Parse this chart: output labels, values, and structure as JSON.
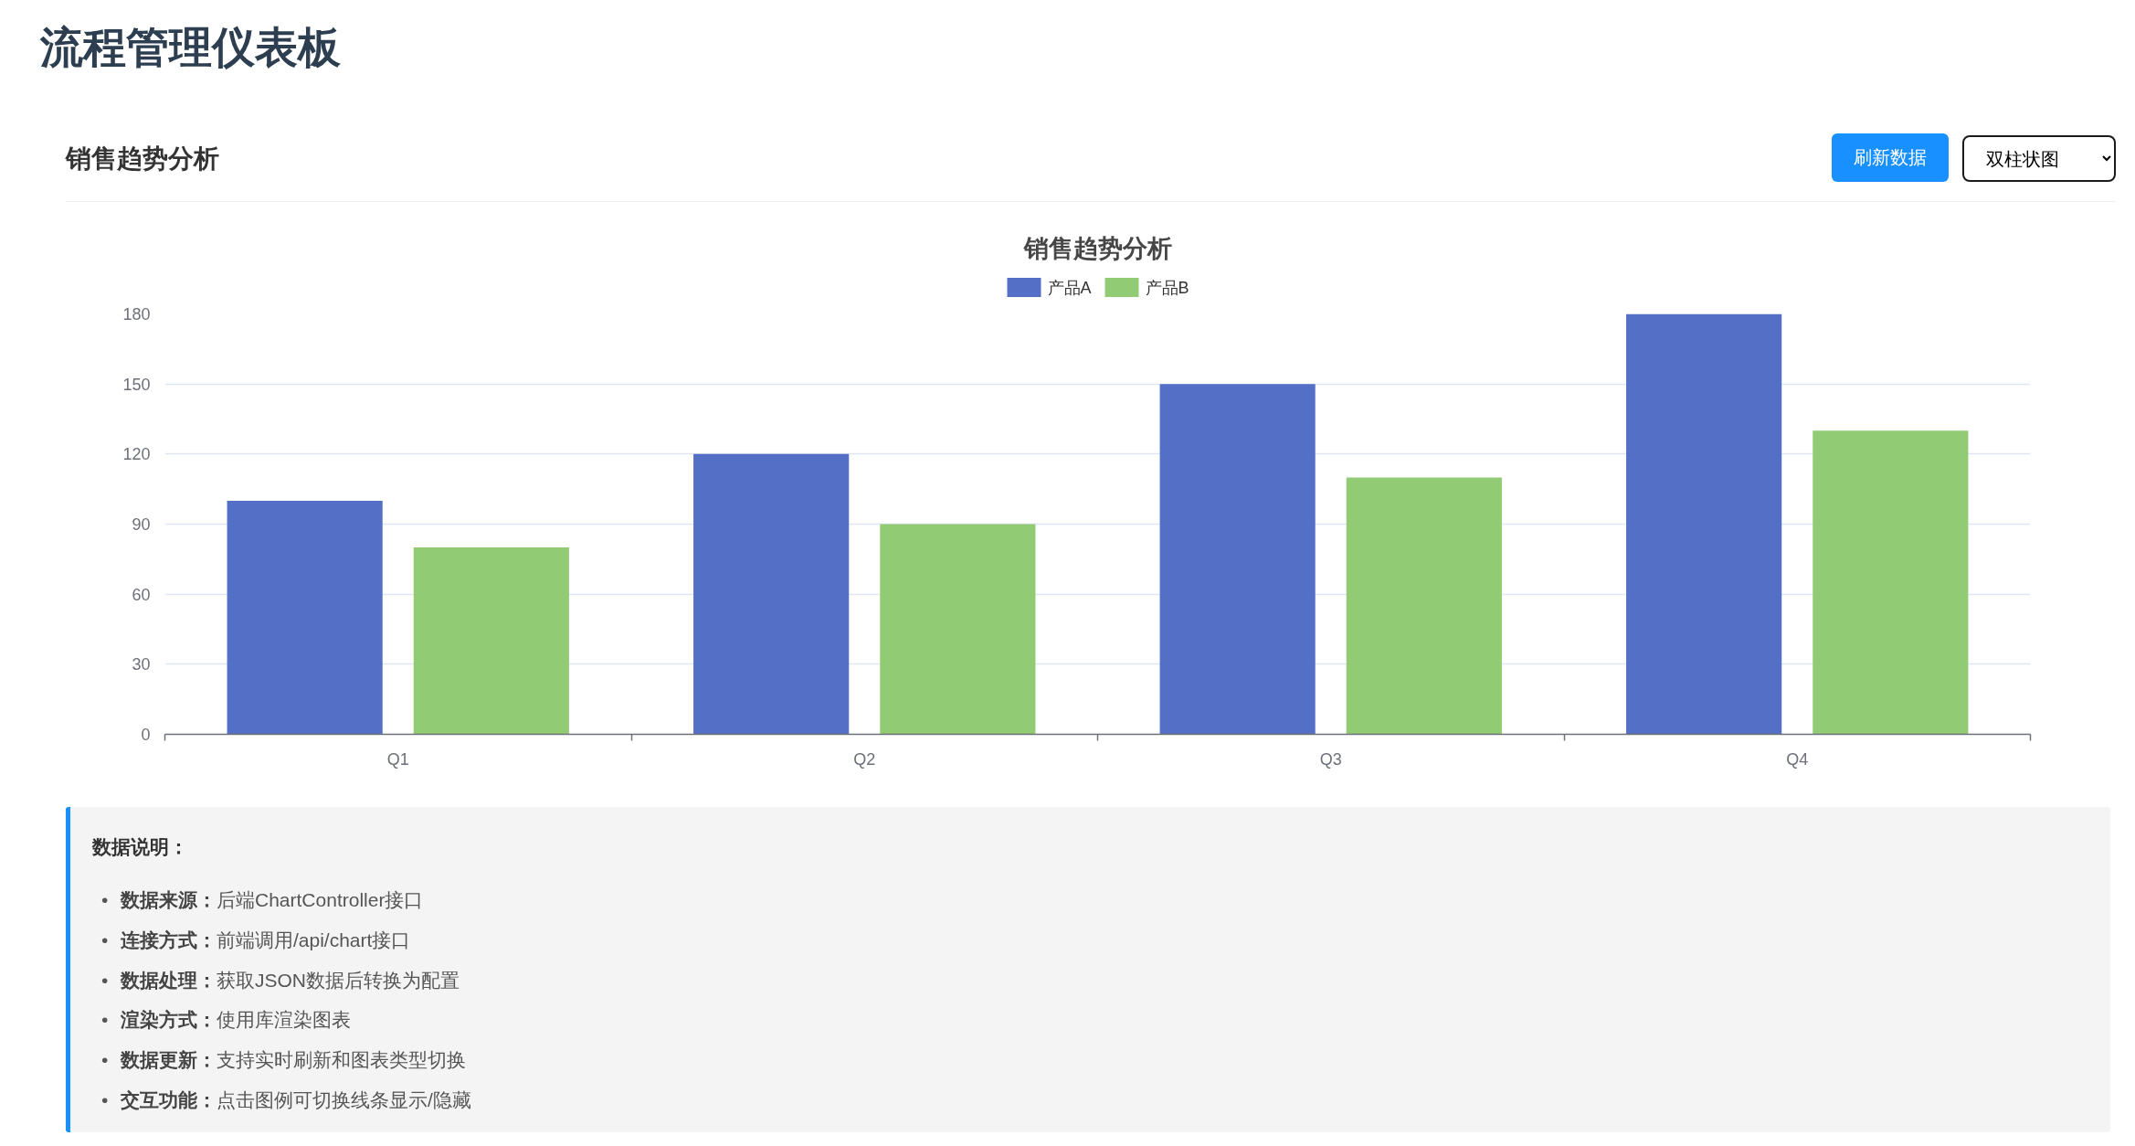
{
  "chart_data": {
    "type": "bar",
    "title": "销售趋势分析",
    "categories": [
      "Q1",
      "Q2",
      "Q3",
      "Q4"
    ],
    "series": [
      {
        "name": "产品A",
        "color": "#5470c6",
        "values": [
          100,
          120,
          150,
          180
        ]
      },
      {
        "name": "产品B",
        "color": "#91cc75",
        "values": [
          80,
          90,
          110,
          130
        ]
      }
    ],
    "ylim": [
      0,
      180
    ],
    "yticks": [
      0,
      30,
      60,
      90,
      120,
      150,
      180
    ],
    "grid": "y",
    "legend": "top",
    "annotations": [
      "流程管理仪表板",
      "销售趋势分析",
      "刷新数据",
      "双柱状图",
      "数据说明：",
      "• 数据来源：后端ChartController接口",
      "• 连接方式：前端调用/api/chart接口",
      "• 数据处理：获取JSON数据后转换为配置",
      "• 渲染方式：使用库渲染图表",
      "• 数据更新：支持实时刷新和图表类型切换",
      "• 交互功能：点击图例可切换线条显示/隐藏"
    ]
  }
}
